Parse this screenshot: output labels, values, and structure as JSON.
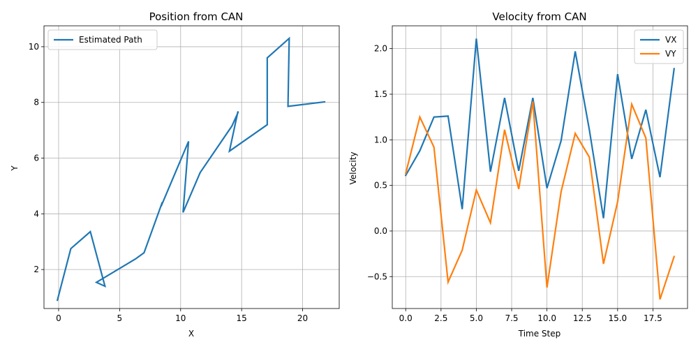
{
  "chart_data": [
    {
      "type": "line",
      "title": "Position from CAN",
      "xlabel": "X",
      "ylabel": "Y",
      "xlim": [
        -1.2,
        23.0
      ],
      "ylim": [
        0.6,
        10.75
      ],
      "xticks": [
        0,
        5,
        10,
        15,
        20
      ],
      "yticks": [
        2,
        4,
        6,
        8,
        10
      ],
      "xtick_labels": [
        "0",
        "5",
        "10",
        "15",
        "20"
      ],
      "ytick_labels": [
        "2",
        "4",
        "6",
        "8",
        "10"
      ],
      "grid": true,
      "legend_position": "upper left",
      "colors": [
        "#1f77b4"
      ],
      "series": [
        {
          "name": "Estimated Path",
          "x": [
            -0.1,
            1.0,
            2.6,
            3.8,
            3.1,
            6.3,
            7.0,
            8.5,
            8.4,
            10.65,
            10.2,
            11.6,
            14.2,
            14.7,
            14.7,
            14.0,
            17.1,
            17.1,
            18.9,
            18.8,
            21.8
          ],
          "y": [
            0.9,
            2.75,
            3.36,
            1.4,
            1.54,
            2.38,
            2.6,
            4.42,
            4.27,
            6.6,
            4.05,
            5.48,
            7.15,
            7.63,
            7.68,
            6.25,
            7.2,
            9.6,
            10.3,
            7.86,
            8.02
          ]
        }
      ]
    },
    {
      "type": "line",
      "title": "Velocity from CAN",
      "xlabel": "Time Step",
      "ylabel": "Velocity",
      "xlim": [
        -0.95,
        19.95
      ],
      "ylim": [
        -0.85,
        2.25
      ],
      "xticks": [
        0,
        2.5,
        5,
        7.5,
        10,
        12.5,
        15,
        17.5
      ],
      "yticks": [
        -0.5,
        0,
        0.5,
        1,
        1.5,
        2
      ],
      "xtick_labels": [
        "0.0",
        "2.5",
        "5.0",
        "7.5",
        "10.0",
        "12.5",
        "15.0",
        "17.5"
      ],
      "ytick_labels": [
        "−0.5",
        "0.0",
        "0.5",
        "1.0",
        "1.5",
        "2.0"
      ],
      "grid": true,
      "legend_position": "upper right",
      "colors": [
        "#1f77b4",
        "#ff7f0e"
      ],
      "x": [
        0,
        1,
        2,
        3,
        4,
        5,
        6,
        7,
        8,
        9,
        10,
        11,
        12,
        13,
        14,
        15,
        16,
        17,
        18,
        19
      ],
      "series": [
        {
          "name": "VX",
          "values": [
            0.61,
            0.88,
            1.25,
            1.26,
            0.24,
            2.11,
            0.65,
            1.46,
            0.66,
            1.46,
            0.47,
            0.99,
            1.97,
            1.11,
            0.14,
            1.72,
            0.79,
            1.33,
            0.59,
            1.78
          ]
        },
        {
          "name": "VY",
          "values": [
            0.63,
            1.25,
            0.92,
            -0.56,
            -0.21,
            0.45,
            0.09,
            1.11,
            0.46,
            1.42,
            -0.62,
            0.43,
            1.07,
            0.81,
            -0.36,
            0.32,
            1.39,
            1.02,
            -0.75,
            -0.28
          ]
        }
      ]
    }
  ]
}
